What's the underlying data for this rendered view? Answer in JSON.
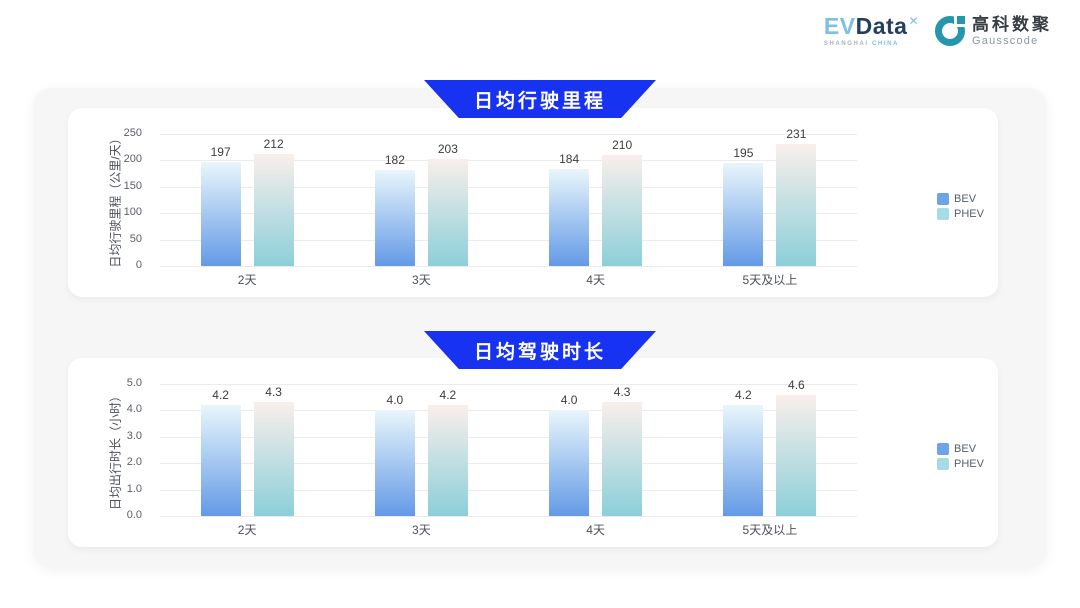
{
  "header": {
    "evdata_logo": {
      "ev": "EV",
      "data": "Data",
      "mark": "✕",
      "sub_left": "SHANGHAI",
      "sub_right": "CHINA"
    },
    "gausscode_logo": {
      "cn": "高科数聚",
      "en": "Gausscode"
    }
  },
  "colors": {
    "banner_blue": "#1732f0",
    "container_gray": "#f7f6f7",
    "bev_legend": "#6ba4e9",
    "phev_legend": "#a5dce5"
  },
  "chart_data": [
    {
      "type": "bar",
      "title": "日均行驶里程",
      "ylabel": "日均行驶里程（公里/天）",
      "categories": [
        "2天",
        "3天",
        "4天",
        "5天及以上"
      ],
      "ymax": 250,
      "yticks": [
        "250",
        "200",
        "150",
        "100",
        "50",
        "0"
      ],
      "grid": true,
      "legend_position": "right",
      "series": [
        {
          "name": "BEV",
          "values": [
            197,
            182,
            184,
            195
          ],
          "labels": [
            "197",
            "182",
            "184",
            "195"
          ],
          "gradient_top": "#e9f6fb",
          "gradient_bottom": "#639ae6",
          "legend_color": "#6ba4e9"
        },
        {
          "name": "PHEV",
          "values": [
            212,
            203,
            210,
            231
          ],
          "labels": [
            "212",
            "203",
            "210",
            "231"
          ],
          "gradient_top": "#f9efeb",
          "gradient_bottom": "#8ccfd9",
          "legend_color": "#a5dce5"
        }
      ]
    },
    {
      "type": "bar",
      "title": "日均驾驶时长",
      "ylabel": "日均出行时长（小时）",
      "categories": [
        "2天",
        "3天",
        "4天",
        "5天及以上"
      ],
      "ymax": 5,
      "yticks": [
        "5.0",
        "4.0",
        "3.0",
        "2.0",
        "1.0",
        "0.0"
      ],
      "grid": true,
      "legend_position": "right",
      "series": [
        {
          "name": "BEV",
          "values": [
            4.2,
            4.0,
            4.0,
            4.2
          ],
          "labels": [
            "4.2",
            "4.0",
            "4.0",
            "4.2"
          ],
          "gradient_top": "#e9f6fb",
          "gradient_bottom": "#639ae6",
          "legend_color": "#6ba4e9"
        },
        {
          "name": "PHEV",
          "values": [
            4.3,
            4.2,
            4.3,
            4.6
          ],
          "labels": [
            "4.3",
            "4.2",
            "4.3",
            "4.6"
          ],
          "gradient_top": "#f9efeb",
          "gradient_bottom": "#8ccfd9",
          "legend_color": "#a5dce5"
        }
      ]
    }
  ]
}
